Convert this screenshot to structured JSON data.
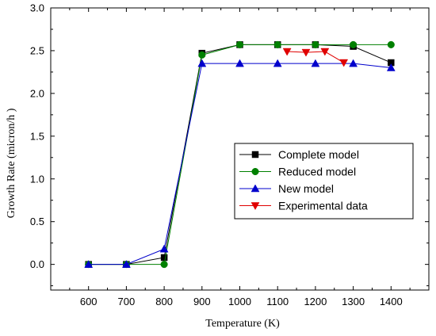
{
  "chart_data": {
    "type": "line",
    "xlabel": "Temperature (K)",
    "ylabel": "Growth Rate (micron/h )",
    "xlim": [
      500,
      1500
    ],
    "ylim": [
      -0.3,
      3.0
    ],
    "xticks": [
      600,
      700,
      800,
      900,
      1000,
      1100,
      1200,
      1300,
      1400
    ],
    "xtick_labels": [
      "600",
      "700",
      "800",
      "900",
      "1000",
      "1100",
      "1200",
      "1300",
      "1400"
    ],
    "yticks": [
      0.0,
      0.5,
      1.0,
      1.5,
      2.0,
      2.5,
      3.0
    ],
    "ytick_labels": [
      "0.0",
      "0.5",
      "1.0",
      "1.5",
      "2.0",
      "2.5",
      "3.0"
    ],
    "grid": false,
    "legend_position": "center-right",
    "series": [
      {
        "name": "Complete model",
        "color": "#000000",
        "marker": "square",
        "x": [
          600,
          700,
          800,
          900,
          1000,
          1100,
          1200,
          1300,
          1400
        ],
        "y": [
          0.0,
          0.0,
          0.08,
          2.47,
          2.57,
          2.57,
          2.57,
          2.55,
          2.36
        ]
      },
      {
        "name": "Reduced model",
        "color": "#008000",
        "marker": "circle",
        "x": [
          600,
          700,
          800,
          900,
          1000,
          1100,
          1200,
          1300,
          1400
        ],
        "y": [
          0.0,
          0.0,
          0.0,
          2.45,
          2.57,
          2.57,
          2.57,
          2.57,
          2.57
        ]
      },
      {
        "name": "New model",
        "color": "#0000cc",
        "marker": "triangle-up",
        "x": [
          600,
          700,
          800,
          900,
          1000,
          1100,
          1200,
          1300,
          1400
        ],
        "y": [
          0.0,
          0.0,
          0.18,
          2.35,
          2.35,
          2.35,
          2.35,
          2.35,
          2.3
        ]
      },
      {
        "name": "Experimental data",
        "color": "#e00000",
        "marker": "triangle-down",
        "x": [
          1125,
          1175,
          1225,
          1275
        ],
        "y": [
          2.49,
          2.48,
          2.49,
          2.36
        ]
      }
    ]
  }
}
